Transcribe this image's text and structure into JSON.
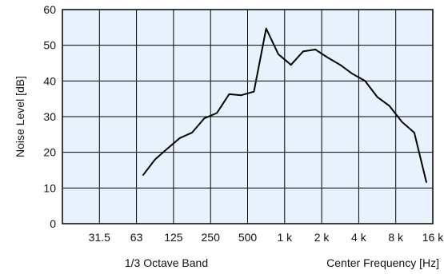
{
  "chart_data": {
    "type": "line",
    "title": "",
    "ylabel": "Noise Level [dB]",
    "xlabel_left": "1/3 Octave Band",
    "xlabel_right": "Center Frequency [Hz]",
    "ylim": [
      0,
      60
    ],
    "yticks": [
      0,
      10,
      20,
      30,
      40,
      50,
      60
    ],
    "xlim_octaves": [
      0,
      10
    ],
    "xtick_labels": [
      "31.5",
      "63",
      "125",
      "250",
      "500",
      "1 k",
      "2 k",
      "4 k",
      "8 k",
      "16 k"
    ],
    "xtick_positions_octaves": [
      1,
      2,
      3,
      4,
      5,
      6,
      7,
      8,
      9,
      10
    ],
    "grid": true,
    "background_color": "#e8f2fc",
    "line_color": "#000000",
    "series": [
      {
        "x_octaves": [
          2.67,
          3.0,
          3.33,
          3.67,
          4.0,
          4.33,
          4.67,
          5.0,
          5.33,
          5.67,
          6.0,
          6.33,
          6.67,
          7.0,
          7.33,
          7.67,
          8.0,
          8.33,
          8.67,
          9.0,
          9.33,
          9.67,
          10.0,
          10.33
        ],
        "values": [
          13.5,
          18,
          21,
          24,
          25.5,
          29.5,
          31,
          36.3,
          36,
          37,
          54.7,
          47.5,
          44.5,
          48.3,
          48.8,
          46.5,
          44.5,
          42,
          40,
          35.5,
          33,
          28.5,
          25.5,
          11.5
        ]
      }
    ]
  }
}
